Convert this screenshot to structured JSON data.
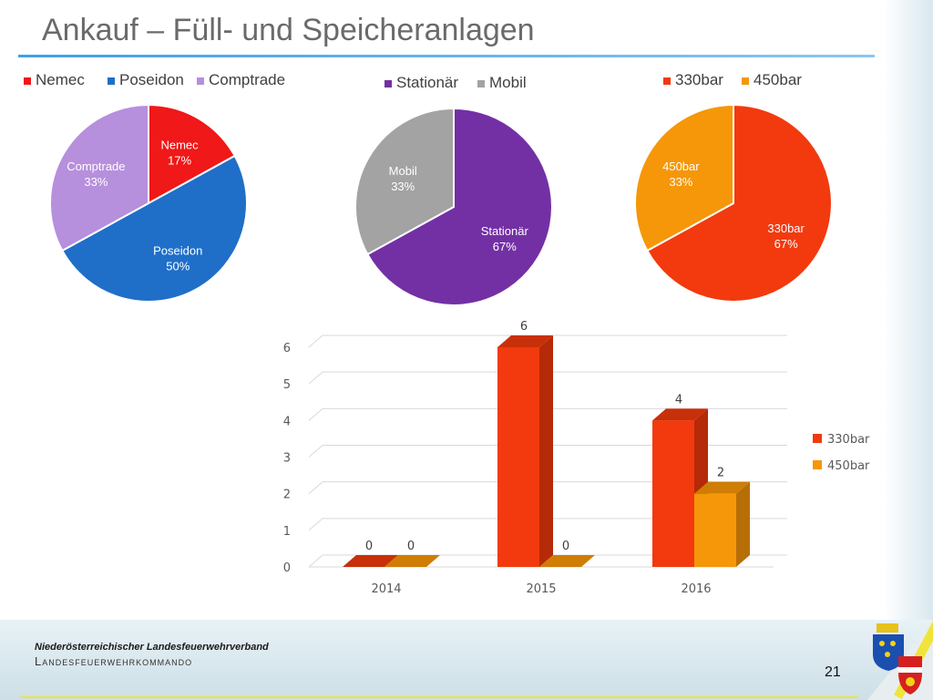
{
  "slide": {
    "title": "Ankauf – Füll- und Speicheranlagen",
    "footer_org": "Niederösterreichischer Landesfeuerwehrverband",
    "footer_dept": "Landesfeuerwehrkommando",
    "page_number": "21"
  },
  "chart_data": [
    {
      "type": "pie",
      "legend_position": "top",
      "slices": [
        {
          "label": "Nemec",
          "value": 17,
          "pct_label": "17%",
          "color": "#f01818"
        },
        {
          "label": "Poseidon",
          "value": 50,
          "pct_label": "50%",
          "color": "#1f6fc8"
        },
        {
          "label": "Comptrade",
          "value": 33,
          "pct_label": "33%",
          "color": "#b68fdd"
        }
      ]
    },
    {
      "type": "pie",
      "legend_position": "top",
      "slices": [
        {
          "label": "Stationär",
          "value": 67,
          "pct_label": "67%",
          "color": "#7330a5"
        },
        {
          "label": "Mobil",
          "value": 33,
          "pct_label": "33%",
          "color": "#a3a3a3"
        }
      ]
    },
    {
      "type": "pie",
      "legend_position": "top",
      "slices": [
        {
          "label": "330bar",
          "value": 67,
          "pct_label": "67%",
          "color": "#f23a0e"
        },
        {
          "label": "450bar",
          "value": 33,
          "pct_label": "33%",
          "color": "#f59708"
        }
      ]
    },
    {
      "type": "bar",
      "style": "3d",
      "categories": [
        "2014",
        "2015",
        "2016"
      ],
      "series": [
        {
          "name": "330bar",
          "values": [
            0,
            6,
            4
          ],
          "color": "#f23a0e"
        },
        {
          "name": "450bar",
          "values": [
            0,
            0,
            2
          ],
          "color": "#f59708"
        }
      ],
      "ylim": [
        0,
        6
      ],
      "yticks": [
        0,
        1,
        2,
        3,
        4,
        5,
        6
      ],
      "grid": true,
      "legend_position": "right"
    }
  ]
}
